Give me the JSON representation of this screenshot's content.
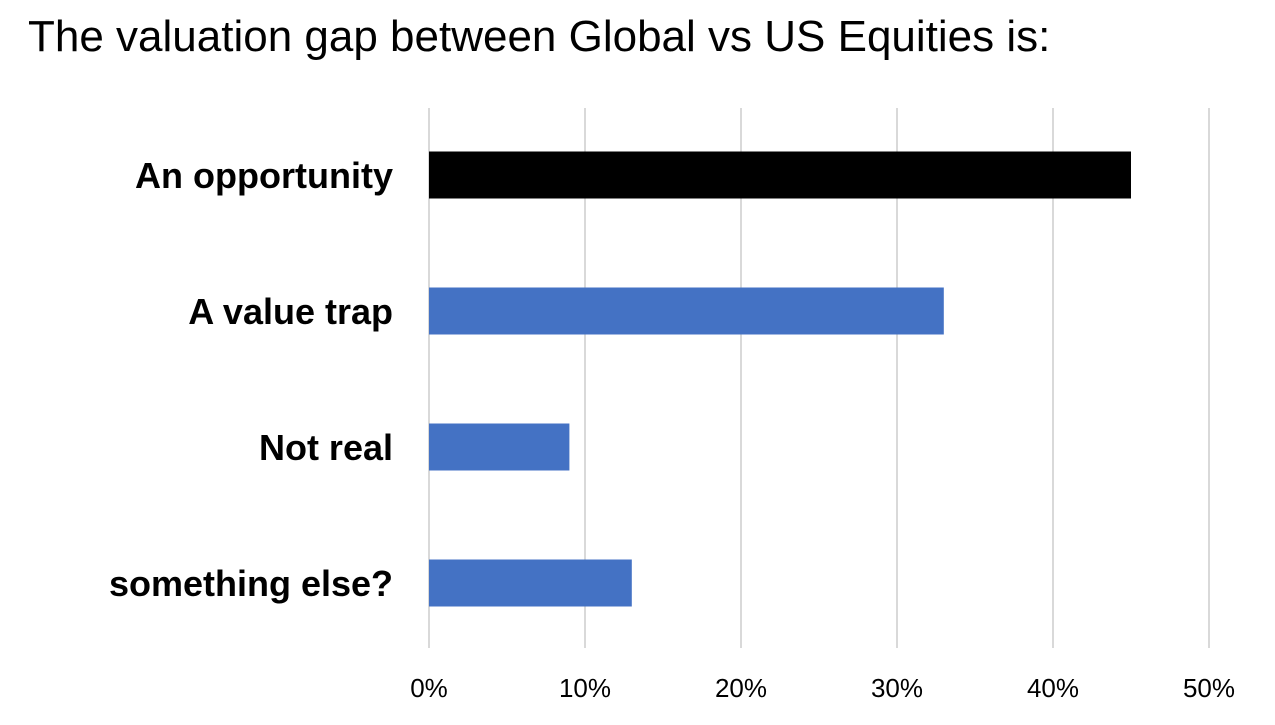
{
  "chart_data": {
    "type": "bar",
    "orientation": "horizontal",
    "title": "The valuation gap between Global vs US Equities is:",
    "categories": [
      "An opportunity",
      "A value trap",
      "Not real",
      "something else?"
    ],
    "values": [
      45,
      33,
      9,
      13
    ],
    "value_unit": "%",
    "xlim": [
      0,
      50
    ],
    "xticks": [
      0,
      10,
      20,
      30,
      40,
      50
    ],
    "xtick_labels": [
      "0%",
      "10%",
      "20%",
      "30%",
      "40%",
      "50%"
    ],
    "grid": "vertical",
    "legend": "none",
    "colors": {
      "highlight": "#000000",
      "default": "#4472C4",
      "grid": "#D9D9D9"
    },
    "highlight_index": 0
  }
}
